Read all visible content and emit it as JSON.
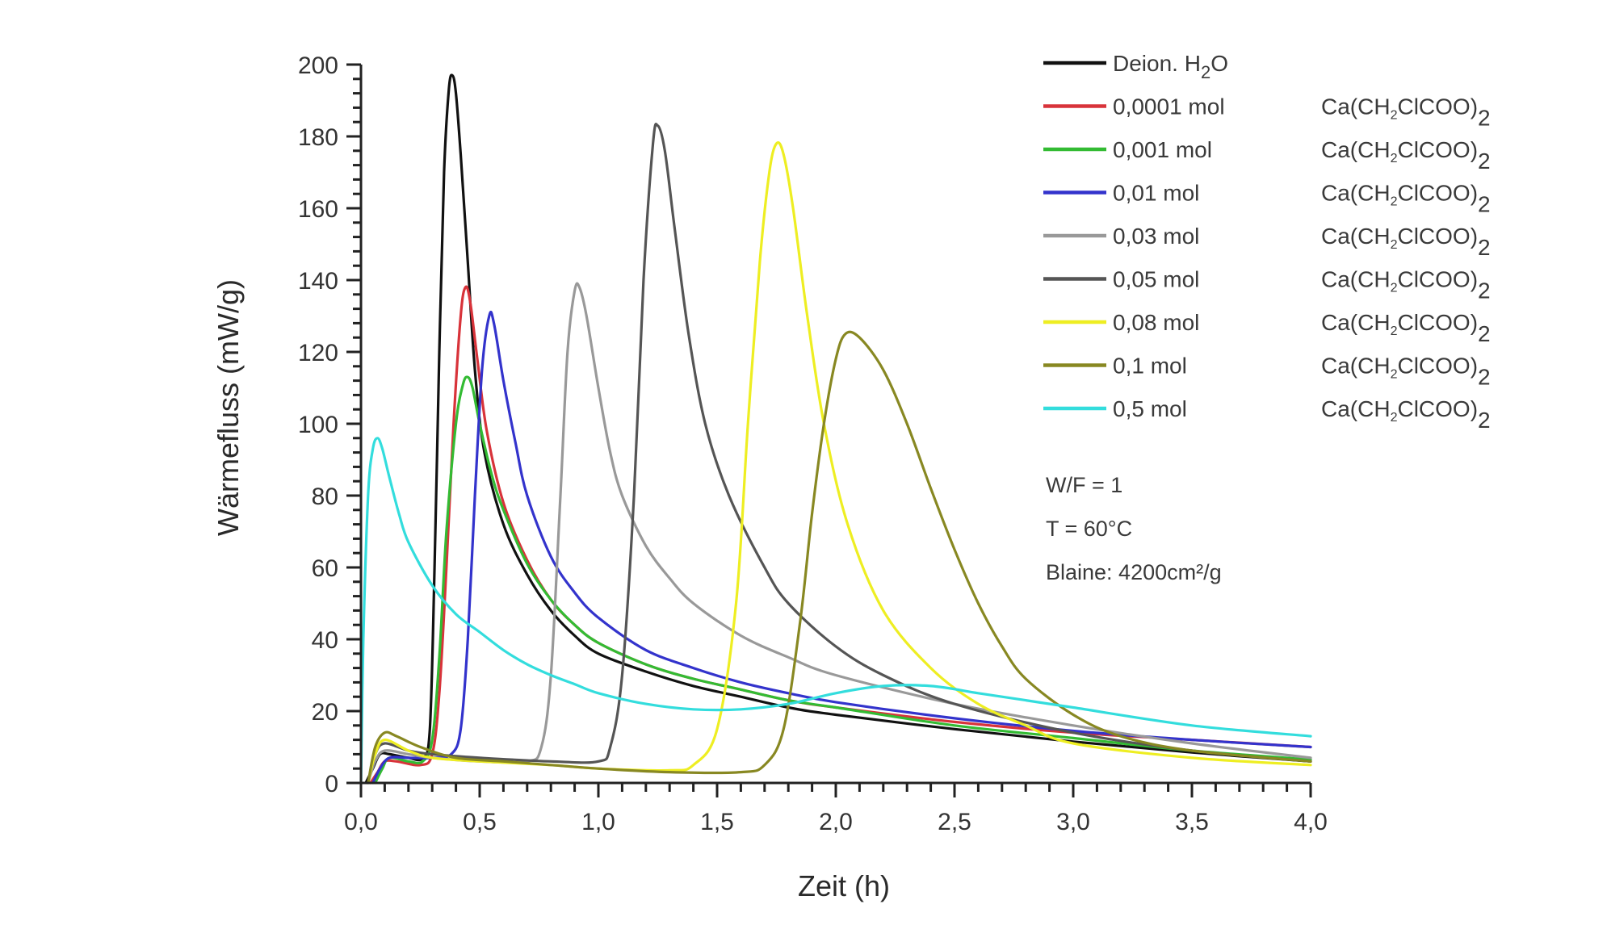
{
  "chart_data": {
    "type": "line",
    "title": "",
    "xlabel": "Zeit (h)",
    "ylabel": "Wärmefluss (mW/g)",
    "xlim": [
      0,
      4.0
    ],
    "ylim": [
      0,
      200
    ],
    "grid": false,
    "legend_placement": "top-right",
    "x_ticks": [
      "0,0",
      "0,5",
      "1,0",
      "1,5",
      "2,0",
      "2,5",
      "3,0",
      "3,5",
      "4,0"
    ],
    "x_tick_values": [
      0,
      0.5,
      1.0,
      1.5,
      2.0,
      2.5,
      3.0,
      3.5,
      4.0
    ],
    "y_ticks": [
      "0",
      "20",
      "40",
      "60",
      "80",
      "100",
      "120",
      "140",
      "160",
      "180",
      "200"
    ],
    "y_tick_values": [
      0,
      20,
      40,
      60,
      80,
      100,
      120,
      140,
      160,
      180,
      200
    ],
    "annotations": [
      "W/F = 1",
      "T = 60°C",
      "Blaine: 4200cm²/g"
    ],
    "series": [
      {
        "name": "Deion. H2O",
        "label_main": "Deion. H",
        "label_sub": "2",
        "label_tail": "O",
        "compound": "",
        "color": "#111111",
        "points": [
          [
            0.02,
            0
          ],
          [
            0.05,
            4
          ],
          [
            0.08,
            8
          ],
          [
            0.12,
            8
          ],
          [
            0.2,
            7
          ],
          [
            0.26,
            7
          ],
          [
            0.29,
            15
          ],
          [
            0.31,
            60
          ],
          [
            0.33,
            120
          ],
          [
            0.35,
            170
          ],
          [
            0.37,
            193
          ],
          [
            0.385,
            197
          ],
          [
            0.4,
            192
          ],
          [
            0.42,
            175
          ],
          [
            0.45,
            145
          ],
          [
            0.48,
            115
          ],
          [
            0.52,
            92
          ],
          [
            0.6,
            72
          ],
          [
            0.7,
            58
          ],
          [
            0.8,
            48
          ],
          [
            0.9,
            41
          ],
          [
            1.0,
            36
          ],
          [
            1.2,
            31
          ],
          [
            1.4,
            27
          ],
          [
            1.6,
            24
          ],
          [
            1.8,
            21
          ],
          [
            2.0,
            19
          ],
          [
            2.5,
            15
          ],
          [
            3.0,
            11.5
          ],
          [
            3.5,
            8.5
          ],
          [
            4.0,
            6
          ]
        ]
      },
      {
        "name": "0,0001 mol Ca(CH2ClCOO)2",
        "label_main": "0,0001 mol",
        "label_sub": "",
        "label_tail": "",
        "compound": "Ca(CH2ClCOO)2",
        "color": "#d8333a",
        "points": [
          [
            0.04,
            0
          ],
          [
            0.07,
            3
          ],
          [
            0.1,
            6
          ],
          [
            0.15,
            6
          ],
          [
            0.25,
            5
          ],
          [
            0.3,
            8
          ],
          [
            0.33,
            25
          ],
          [
            0.36,
            60
          ],
          [
            0.39,
            100
          ],
          [
            0.42,
            130
          ],
          [
            0.44,
            138
          ],
          [
            0.46,
            134
          ],
          [
            0.49,
            118
          ],
          [
            0.53,
            98
          ],
          [
            0.6,
            78
          ],
          [
            0.7,
            62
          ],
          [
            0.8,
            51
          ],
          [
            0.9,
            44
          ],
          [
            1.0,
            39
          ],
          [
            1.2,
            33
          ],
          [
            1.4,
            29
          ],
          [
            1.6,
            26
          ],
          [
            1.8,
            23
          ],
          [
            2.0,
            21
          ],
          [
            2.5,
            17
          ],
          [
            3.0,
            14
          ],
          [
            3.5,
            12
          ],
          [
            4.0,
            10
          ]
        ]
      },
      {
        "name": "0,001 mol Ca(CH2ClCOO)2",
        "label_main": "0,001 mol",
        "label_sub": "",
        "label_tail": "",
        "compound": "Ca(CH2ClCOO)2",
        "color": "#33bb33",
        "points": [
          [
            0.06,
            0
          ],
          [
            0.09,
            4
          ],
          [
            0.12,
            7
          ],
          [
            0.2,
            6
          ],
          [
            0.26,
            6
          ],
          [
            0.3,
            12
          ],
          [
            0.33,
            35
          ],
          [
            0.36,
            70
          ],
          [
            0.4,
            100
          ],
          [
            0.43,
            111
          ],
          [
            0.45,
            113
          ],
          [
            0.47,
            110
          ],
          [
            0.5,
            100
          ],
          [
            0.55,
            86
          ],
          [
            0.6,
            76
          ],
          [
            0.7,
            61
          ],
          [
            0.8,
            51
          ],
          [
            0.9,
            44
          ],
          [
            1.0,
            39
          ],
          [
            1.2,
            33
          ],
          [
            1.4,
            29
          ],
          [
            1.6,
            26
          ],
          [
            1.8,
            23
          ],
          [
            2.0,
            21
          ],
          [
            2.5,
            16
          ],
          [
            3.0,
            12.5
          ],
          [
            3.5,
            9
          ],
          [
            4.0,
            6.5
          ]
        ]
      },
      {
        "name": "0,01 mol Ca(CH2ClCOO)2",
        "label_main": "0,01 mol",
        "label_sub": "",
        "label_tail": "",
        "compound": "Ca(CH2ClCOO)2",
        "color": "#3333cc",
        "points": [
          [
            0.05,
            0
          ],
          [
            0.08,
            4
          ],
          [
            0.12,
            7
          ],
          [
            0.2,
            7
          ],
          [
            0.3,
            7
          ],
          [
            0.38,
            8
          ],
          [
            0.42,
            15
          ],
          [
            0.45,
            40
          ],
          [
            0.48,
            80
          ],
          [
            0.51,
            115
          ],
          [
            0.54,
            130
          ],
          [
            0.56,
            128
          ],
          [
            0.6,
            112
          ],
          [
            0.65,
            95
          ],
          [
            0.7,
            80
          ],
          [
            0.8,
            63
          ],
          [
            0.9,
            53
          ],
          [
            1.0,
            46
          ],
          [
            1.2,
            37
          ],
          [
            1.4,
            32
          ],
          [
            1.6,
            28
          ],
          [
            1.8,
            25
          ],
          [
            2.0,
            22.5
          ],
          [
            2.5,
            18
          ],
          [
            3.0,
            14.5
          ],
          [
            3.5,
            12
          ],
          [
            4.0,
            10
          ]
        ]
      },
      {
        "name": "0,03 mol Ca(CH2ClCOO)2",
        "label_main": "0,03 mol",
        "label_sub": "",
        "label_tail": "",
        "compound": "Ca(CH2ClCOO)2",
        "color": "#999999",
        "points": [
          [
            0.03,
            0
          ],
          [
            0.06,
            6
          ],
          [
            0.1,
            9
          ],
          [
            0.2,
            8
          ],
          [
            0.3,
            7
          ],
          [
            0.5,
            6
          ],
          [
            0.7,
            6
          ],
          [
            0.76,
            10
          ],
          [
            0.8,
            30
          ],
          [
            0.84,
            80
          ],
          [
            0.87,
            120
          ],
          [
            0.9,
            137
          ],
          [
            0.92,
            138
          ],
          [
            0.95,
            130
          ],
          [
            1.0,
            110
          ],
          [
            1.05,
            92
          ],
          [
            1.1,
            80
          ],
          [
            1.2,
            66
          ],
          [
            1.3,
            57
          ],
          [
            1.4,
            50
          ],
          [
            1.6,
            41
          ],
          [
            1.8,
            35
          ],
          [
            2.0,
            30
          ],
          [
            2.5,
            22
          ],
          [
            3.0,
            16
          ],
          [
            3.5,
            11
          ],
          [
            4.0,
            7
          ]
        ]
      },
      {
        "name": "0,05 mol Ca(CH2ClCOO)2",
        "label_main": "0,05 mol",
        "label_sub": "",
        "label_tail": "",
        "compound": "Ca(CH2ClCOO)2",
        "color": "#555555",
        "points": [
          [
            0.03,
            0
          ],
          [
            0.06,
            8
          ],
          [
            0.1,
            11
          ],
          [
            0.2,
            9
          ],
          [
            0.3,
            8
          ],
          [
            0.5,
            7
          ],
          [
            0.8,
            6
          ],
          [
            1.0,
            6
          ],
          [
            1.05,
            10
          ],
          [
            1.1,
            30
          ],
          [
            1.15,
            80
          ],
          [
            1.19,
            140
          ],
          [
            1.23,
            178
          ],
          [
            1.25,
            183
          ],
          [
            1.28,
            176
          ],
          [
            1.32,
            155
          ],
          [
            1.38,
            125
          ],
          [
            1.45,
            100
          ],
          [
            1.55,
            80
          ],
          [
            1.7,
            60
          ],
          [
            1.8,
            50
          ],
          [
            2.0,
            38
          ],
          [
            2.2,
            30
          ],
          [
            2.5,
            22
          ],
          [
            3.0,
            14
          ],
          [
            3.5,
            9
          ],
          [
            4.0,
            6
          ]
        ]
      },
      {
        "name": "0,08 mol Ca(CH2ClCOO)2",
        "label_main": "0,08 mol",
        "label_sub": "",
        "label_tail": "",
        "compound": "Ca(CH2ClCOO)2",
        "color": "#eeee22",
        "points": [
          [
            0.03,
            0
          ],
          [
            0.06,
            8
          ],
          [
            0.1,
            12
          ],
          [
            0.2,
            9
          ],
          [
            0.3,
            7
          ],
          [
            0.5,
            6
          ],
          [
            0.8,
            5
          ],
          [
            1.0,
            4
          ],
          [
            1.3,
            3.5
          ],
          [
            1.4,
            5
          ],
          [
            1.5,
            15
          ],
          [
            1.58,
            50
          ],
          [
            1.63,
            100
          ],
          [
            1.68,
            145
          ],
          [
            1.72,
            170
          ],
          [
            1.75,
            178
          ],
          [
            1.78,
            175
          ],
          [
            1.82,
            160
          ],
          [
            1.88,
            130
          ],
          [
            1.95,
            100
          ],
          [
            2.05,
            72
          ],
          [
            2.2,
            48
          ],
          [
            2.4,
            32
          ],
          [
            2.6,
            22
          ],
          [
            2.8,
            16
          ],
          [
            3.0,
            11
          ],
          [
            3.5,
            7
          ],
          [
            4.0,
            5
          ]
        ]
      },
      {
        "name": "0,1 mol Ca(CH2ClCOO)2",
        "label_main": "0,1 mol",
        "label_sub": "",
        "label_tail": "",
        "compound": "Ca(CH2ClCOO)2",
        "color": "#888822",
        "points": [
          [
            0.03,
            0
          ],
          [
            0.06,
            10
          ],
          [
            0.1,
            14
          ],
          [
            0.15,
            13
          ],
          [
            0.25,
            10
          ],
          [
            0.4,
            7
          ],
          [
            0.6,
            6
          ],
          [
            0.8,
            5
          ],
          [
            1.0,
            4
          ],
          [
            1.3,
            3
          ],
          [
            1.6,
            3
          ],
          [
            1.7,
            5
          ],
          [
            1.78,
            15
          ],
          [
            1.85,
            45
          ],
          [
            1.9,
            75
          ],
          [
            1.95,
            100
          ],
          [
            2.0,
            118
          ],
          [
            2.04,
            125
          ],
          [
            2.1,
            124
          ],
          [
            2.2,
            115
          ],
          [
            2.3,
            100
          ],
          [
            2.4,
            82
          ],
          [
            2.5,
            65
          ],
          [
            2.6,
            50
          ],
          [
            2.7,
            38
          ],
          [
            2.8,
            29
          ],
          [
            3.0,
            19
          ],
          [
            3.2,
            13
          ],
          [
            3.5,
            9
          ],
          [
            4.0,
            6
          ]
        ]
      },
      {
        "name": "0,5 mol Ca(CH2ClCOO)2",
        "label_main": "0,5 mol",
        "label_sub": "",
        "label_tail": "",
        "compound": "Ca(CH2ClCOO)2",
        "color": "#33dddd",
        "points": [
          [
            0.0,
            0
          ],
          [
            0.01,
            40
          ],
          [
            0.03,
            80
          ],
          [
            0.05,
            93
          ],
          [
            0.07,
            96
          ],
          [
            0.09,
            93
          ],
          [
            0.12,
            85
          ],
          [
            0.16,
            75
          ],
          [
            0.2,
            67
          ],
          [
            0.3,
            55
          ],
          [
            0.4,
            47
          ],
          [
            0.5,
            42
          ],
          [
            0.6,
            37
          ],
          [
            0.7,
            33
          ],
          [
            0.8,
            30
          ],
          [
            0.9,
            27.5
          ],
          [
            1.0,
            25
          ],
          [
            1.2,
            22
          ],
          [
            1.4,
            20.5
          ],
          [
            1.6,
            20.5
          ],
          [
            1.8,
            22
          ],
          [
            2.0,
            25
          ],
          [
            2.2,
            27
          ],
          [
            2.4,
            27
          ],
          [
            2.6,
            25
          ],
          [
            2.8,
            23
          ],
          [
            3.0,
            21
          ],
          [
            3.5,
            16
          ],
          [
            4.0,
            13
          ]
        ]
      }
    ]
  }
}
